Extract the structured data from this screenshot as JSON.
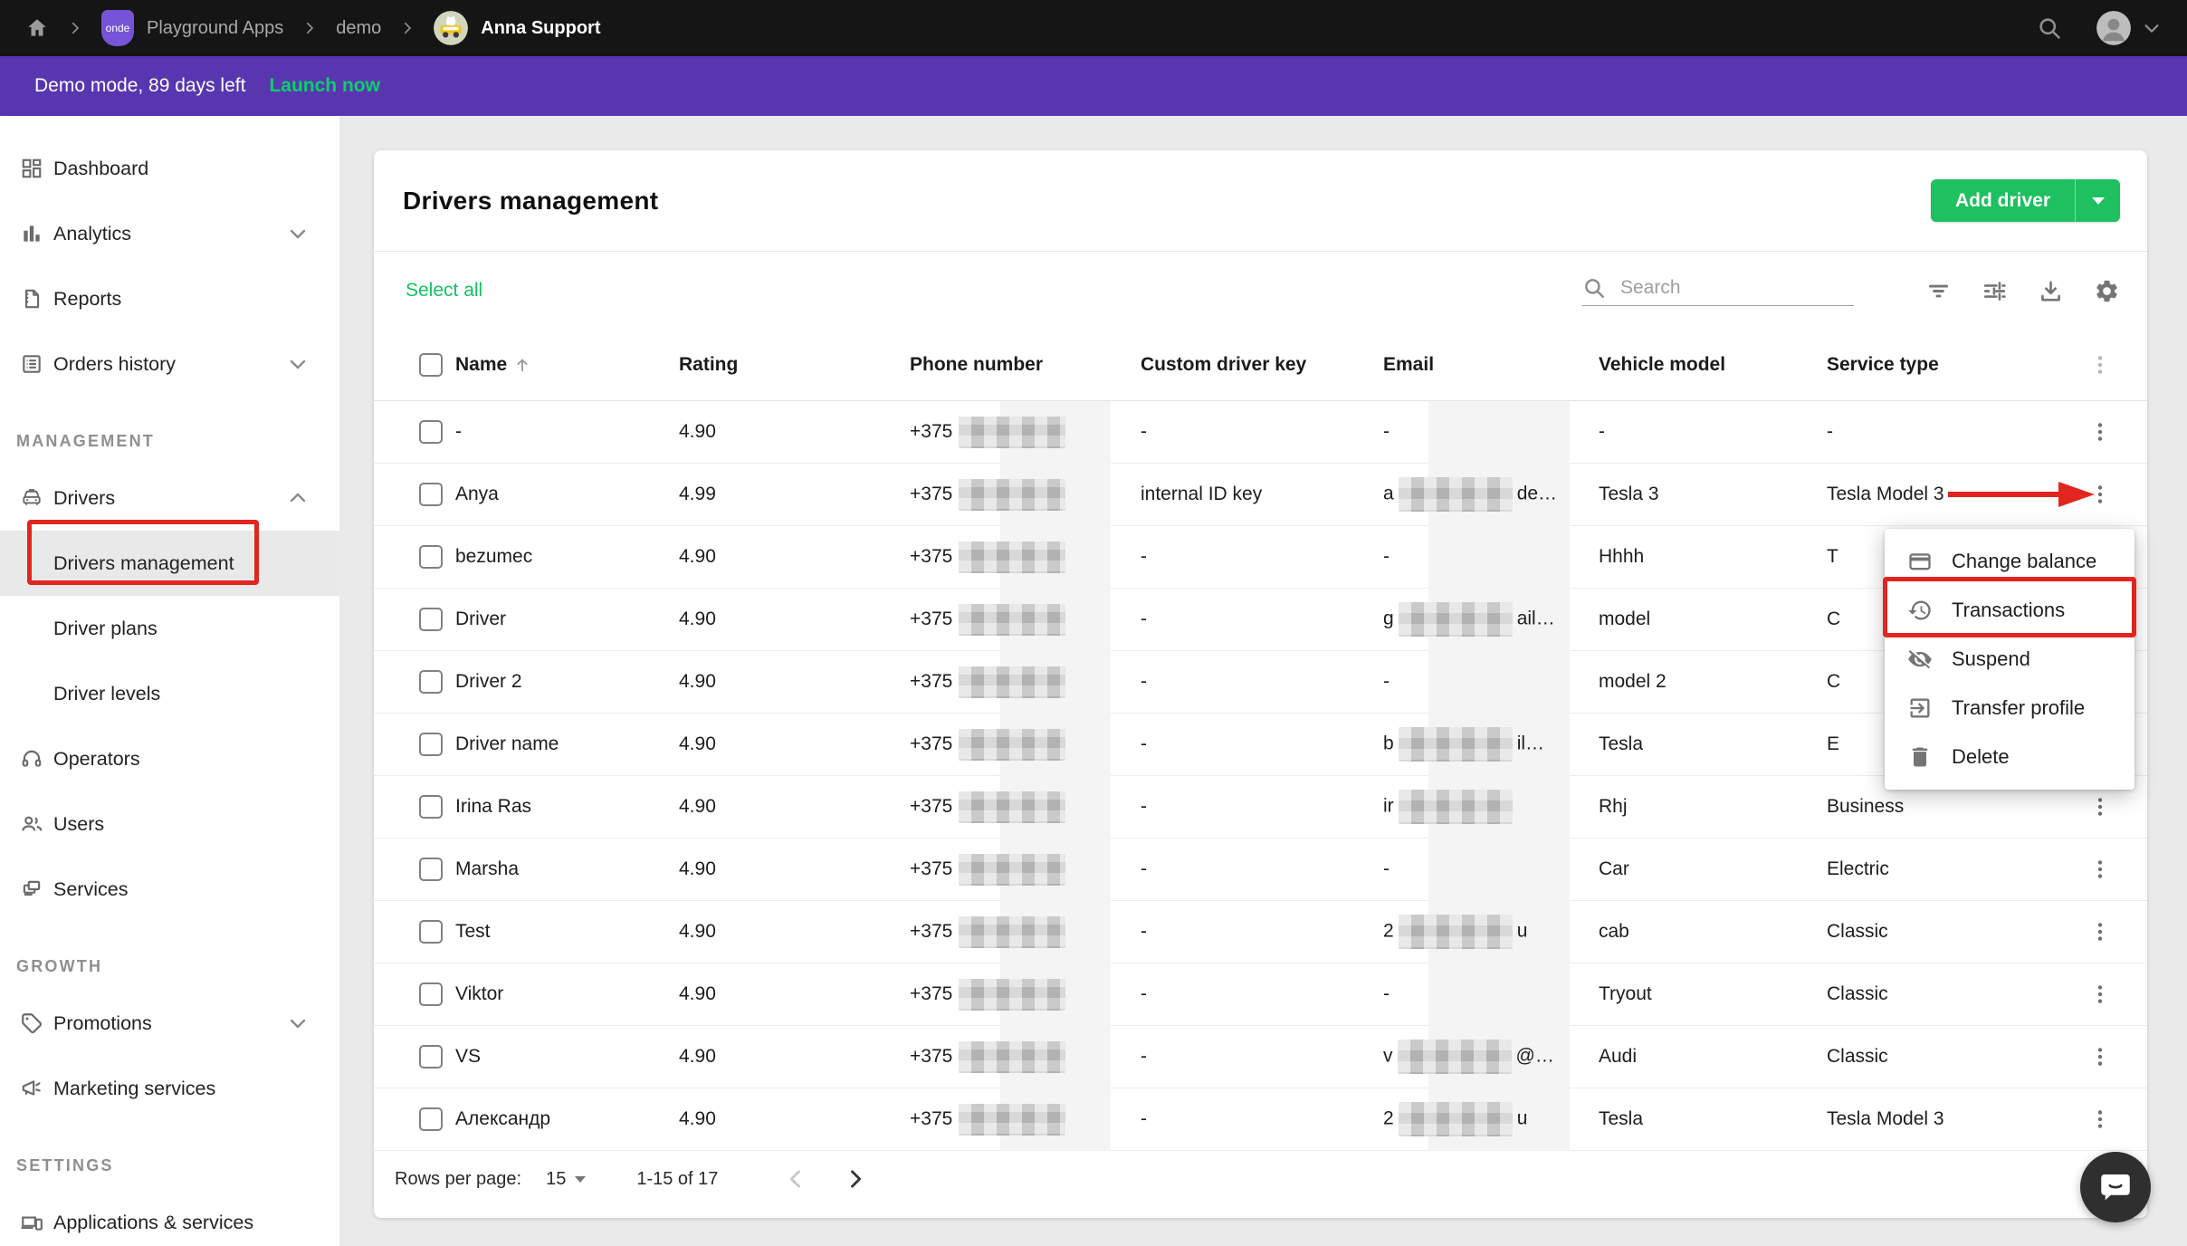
{
  "topbar": {
    "breadcrumb": {
      "badge": "onde",
      "app": "Playground Apps",
      "project": "demo",
      "user": "Anna Support"
    }
  },
  "banner": {
    "message": "Demo mode, 89 days left",
    "action": "Launch now"
  },
  "sidebar": {
    "sections": [
      {
        "label": "",
        "items": [
          {
            "label": "Dashboard",
            "icon": "dashboard"
          },
          {
            "label": "Analytics",
            "icon": "analytics",
            "chevron": "down"
          },
          {
            "label": "Reports",
            "icon": "reports"
          },
          {
            "label": "Orders history",
            "icon": "orders",
            "chevron": "down"
          }
        ]
      },
      {
        "label": "MANAGEMENT",
        "items": [
          {
            "label": "Drivers",
            "icon": "drivers",
            "chevron": "up"
          },
          {
            "label": "Drivers management",
            "sub": true,
            "active": true
          },
          {
            "label": "Driver plans",
            "sub": true
          },
          {
            "label": "Driver levels",
            "sub": true
          },
          {
            "label": "Operators",
            "icon": "operators"
          },
          {
            "label": "Users",
            "icon": "users"
          },
          {
            "label": "Services",
            "icon": "services"
          }
        ]
      },
      {
        "label": "GROWTH",
        "items": [
          {
            "label": "Promotions",
            "icon": "promotions",
            "chevron": "down"
          },
          {
            "label": "Marketing services",
            "icon": "marketing"
          }
        ]
      },
      {
        "label": "SETTINGS",
        "items": [
          {
            "label": "Applications & services",
            "icon": "applications"
          }
        ]
      }
    ]
  },
  "main": {
    "title": "Drivers management",
    "add_driver_label": "Add driver",
    "select_all_label": "Select all",
    "search_placeholder": "Search",
    "table": {
      "columns": [
        "Name",
        "Rating",
        "Phone number",
        "Custom driver key",
        "Email",
        "Vehicle model",
        "Service type"
      ],
      "sort_column": "Name",
      "phone_prefix": "+375",
      "rows": [
        {
          "name": "-",
          "rating": "4.90",
          "key": "-",
          "email_pre": "-",
          "email_blur": false,
          "email_post": "",
          "vehicle": "-",
          "service": "-"
        },
        {
          "name": "Anya",
          "rating": "4.99",
          "key": "internal ID key",
          "email_pre": "a",
          "email_blur": true,
          "email_post": "de…",
          "vehicle": "Tesla 3",
          "service": "Tesla Model 3"
        },
        {
          "name": "bezumec",
          "rating": "4.90",
          "key": "-",
          "email_pre": "-",
          "email_blur": false,
          "email_post": "",
          "vehicle": "Hhhh",
          "service": "T"
        },
        {
          "name": "Driver",
          "rating": "4.90",
          "key": "-",
          "email_pre": "g",
          "email_blur": true,
          "email_post": "ail…",
          "vehicle": "model",
          "service": "C"
        },
        {
          "name": "Driver 2",
          "rating": "4.90",
          "key": "-",
          "email_pre": "-",
          "email_blur": false,
          "email_post": "",
          "vehicle": "model 2",
          "service": "C"
        },
        {
          "name": "Driver name",
          "rating": "4.90",
          "key": "-",
          "email_pre": "b",
          "email_blur": true,
          "email_post": "il…",
          "vehicle": "Tesla",
          "service": "E"
        },
        {
          "name": "Irina Ras",
          "rating": "4.90",
          "key": "-",
          "email_pre": "ir",
          "email_blur": true,
          "email_post": "",
          "vehicle": "Rhj",
          "service": "Business"
        },
        {
          "name": "Marsha",
          "rating": "4.90",
          "key": "-",
          "email_pre": "-",
          "email_blur": false,
          "email_post": "",
          "vehicle": "Car",
          "service": "Electric"
        },
        {
          "name": "Test",
          "rating": "4.90",
          "key": "-",
          "email_pre": "2",
          "email_blur": true,
          "email_post": "u",
          "vehicle": "cab",
          "service": "Classic"
        },
        {
          "name": "Viktor",
          "rating": "4.90",
          "key": "-",
          "email_pre": "-",
          "email_blur": false,
          "email_post": "",
          "vehicle": "Tryout",
          "service": "Classic"
        },
        {
          "name": "VS",
          "rating": "4.90",
          "key": "-",
          "email_pre": "v",
          "email_blur": true,
          "email_post": "@…",
          "vehicle": "Audi",
          "service": "Classic"
        },
        {
          "name": "Александр",
          "rating": "4.90",
          "key": "-",
          "email_pre": "2",
          "email_blur": true,
          "email_post": "u",
          "vehicle": "Tesla",
          "service": "Tesla Model 3"
        }
      ]
    },
    "context_menu": {
      "items": [
        {
          "label": "Change balance",
          "icon": "card"
        },
        {
          "label": "Transactions",
          "icon": "history",
          "annotated": true
        },
        {
          "label": "Suspend",
          "icon": "eye-off"
        },
        {
          "label": "Transfer profile",
          "icon": "transfer"
        },
        {
          "label": "Delete",
          "icon": "trash"
        }
      ]
    },
    "pagination": {
      "rows_per_page_label": "Rows per page:",
      "rows_per_page": "15",
      "range": "1-15 of 17"
    }
  },
  "colors": {
    "accent_green": "#1ec05f",
    "launch_green": "#0bd169",
    "banner_purple": "#5836b0",
    "annotation_red": "#e1251f",
    "topbar_black": "#151515"
  }
}
